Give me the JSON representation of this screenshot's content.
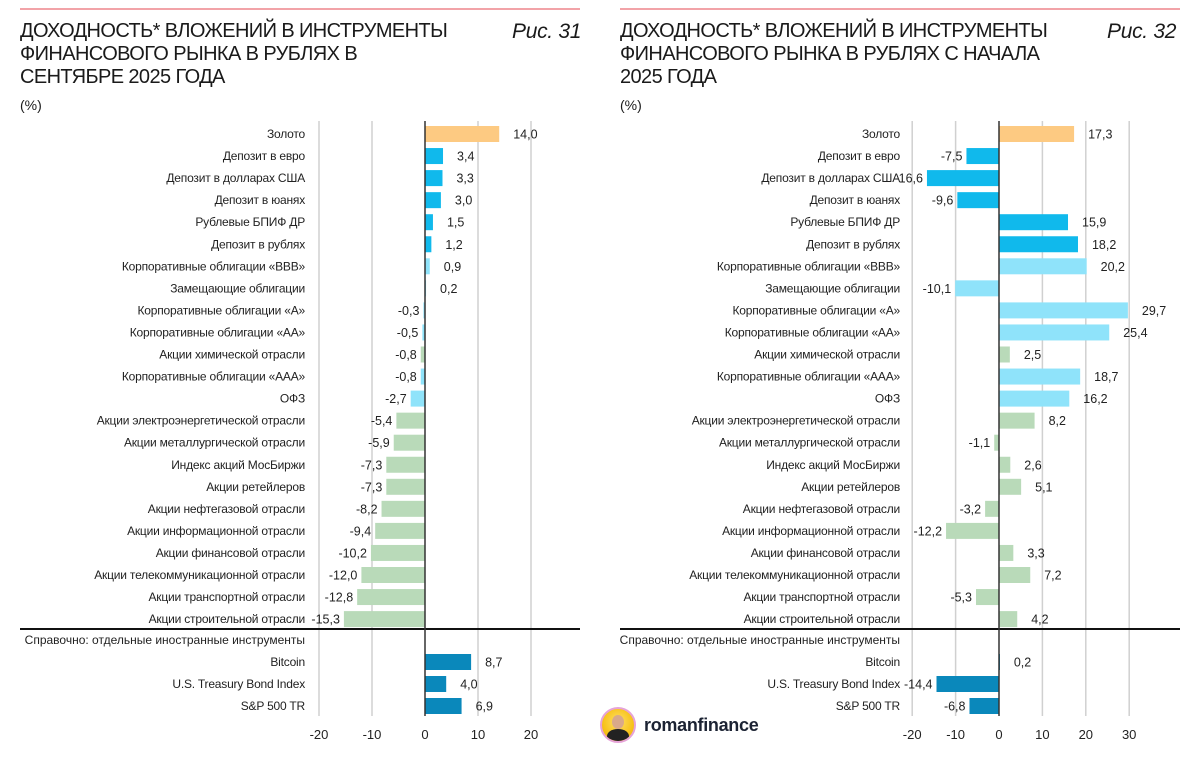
{
  "colors": {
    "gold": "#fdca82",
    "deposit": "#10b9ec",
    "bond": "#8fe3fa",
    "stock": "#b9dab9",
    "foreign": "#0a88bb",
    "grid": "#d0d0d0"
  },
  "charts": {
    "left": {
      "title": "ДОХОДНОСТЬ* ВЛОЖЕНИЙ В ИНСТРУМЕНТЫ ФИНАНСОВОГО РЫНКА В РУБЛЯХ В СЕНТЯБРЕ 2025 ГОДА",
      "fig": "Рис. 31",
      "unit": "(%)"
    },
    "right": {
      "title": "ДОХОДНОСТЬ* ВЛОЖЕНИЙ В ИНСТРУМЕНТЫ ФИНАНСОВОГО РЫНКА В РУБЛЯХ С НАЧАЛА 2025 ГОДА",
      "fig": "Рис. 32",
      "unit": "(%)"
    }
  },
  "logo": {
    "text": "romanfinance"
  },
  "chart_data": [
    {
      "type": "bar",
      "orientation": "horizontal",
      "title": "ДОХОДНОСТЬ* ВЛОЖЕНИЙ В ИНСТРУМЕНТЫ ФИНАНСОВОГО РЫНКА В РУБЛЯХ В СЕНТЯБРЕ 2025 ГОДА",
      "ylabel": "(%)",
      "xlim": [
        -20,
        20
      ],
      "xticks": [
        -20,
        -10,
        0,
        10,
        20
      ],
      "grid": true,
      "categories": [
        "Золото",
        "Депозит в евро",
        "Депозит в долларах США",
        "Депозит в юанях",
        "Рублевые БПИФ ДР",
        "Депозит в рублях",
        "Корпоративные облигации «ВВВ»",
        "Замещающие облигации",
        "Корпоративные облигации «А»",
        "Корпоративные облигации «АА»",
        "Акции химической отрасли",
        "Корпоративные облигации «ААА»",
        "ОФЗ",
        "Акции электроэнергетической отрасли",
        "Акции металлургической отрасли",
        "Индекс акций МосБиржи",
        "Акции ретейлеров",
        "Акции нефтегазовой отрасли",
        "Акции информационной отрасли",
        "Акции финансовой отрасли",
        "Акции телекоммуникационной отрасли",
        "Акции транспортной отрасли",
        "Акции строительной отрасли"
      ],
      "values": [
        14.0,
        3.4,
        3.3,
        3.0,
        1.5,
        1.2,
        0.9,
        0.2,
        -0.3,
        -0.5,
        -0.8,
        -0.8,
        -2.7,
        -5.4,
        -5.9,
        -7.3,
        -7.3,
        -8.2,
        -9.4,
        -10.2,
        -12.0,
        -12.8,
        -15.3
      ],
      "groups": [
        "gold",
        "deposit",
        "deposit",
        "deposit",
        "deposit",
        "deposit",
        "bond",
        "bond",
        "bond",
        "bond",
        "stock",
        "bond",
        "bond",
        "stock",
        "stock",
        "stock",
        "stock",
        "stock",
        "stock",
        "stock",
        "stock",
        "stock",
        "stock"
      ],
      "reference_header": "Справочно: отдельные иностранные инструменты",
      "reference_categories": [
        "Bitcoin",
        "U.S. Treasury Bond Index",
        "S&P 500 TR"
      ],
      "reference_values": [
        8.7,
        4.0,
        6.9
      ]
    },
    {
      "type": "bar",
      "orientation": "horizontal",
      "title": "ДОХОДНОСТЬ* ВЛОЖЕНИЙ В ИНСТРУМЕНТЫ ФИНАНСОВОГО РЫНКА В РУБЛЯХ С НАЧАЛА 2025 ГОДА",
      "ylabel": "(%)",
      "xlim": [
        -20,
        30
      ],
      "xticks": [
        -20,
        -10,
        0,
        10,
        20,
        30
      ],
      "grid": true,
      "categories": [
        "Золото",
        "Депозит в евро",
        "Депозит в долларах США",
        "Депозит в юанях",
        "Рублевые БПИФ ДР",
        "Депозит в рублях",
        "Корпоративные облигации «ВВВ»",
        "Замещающие облигации",
        "Корпоративные облигации «А»",
        "Корпоративные облигации «АА»",
        "Акции химической отрасли",
        "Корпоративные облигации «ААА»",
        "ОФЗ",
        "Акции электроэнергетической отрасли",
        "Акции металлургической отрасли",
        "Индекс акций МосБиржи",
        "Акции ретейлеров",
        "Акции нефтегазовой отрасли",
        "Акции информационной отрасли",
        "Акции финансовой отрасли",
        "Акции телекоммуникационной отрасли",
        "Акции транспортной отрасли",
        "Акции строительной отрасли"
      ],
      "values": [
        17.3,
        -7.5,
        -16.6,
        -9.6,
        15.9,
        18.2,
        20.2,
        -10.1,
        29.7,
        25.4,
        2.5,
        18.7,
        16.2,
        8.2,
        -1.1,
        2.6,
        5.1,
        -3.2,
        -12.2,
        3.3,
        7.2,
        -5.3,
        4.2
      ],
      "groups": [
        "gold",
        "deposit",
        "deposit",
        "deposit",
        "deposit",
        "deposit",
        "bond",
        "bond",
        "bond",
        "bond",
        "stock",
        "bond",
        "bond",
        "stock",
        "stock",
        "stock",
        "stock",
        "stock",
        "stock",
        "stock",
        "stock",
        "stock",
        "stock"
      ],
      "reference_header": "Справочно: отдельные иностранные инструменты",
      "reference_categories": [
        "Bitcoin",
        "U.S. Treasury Bond Index",
        "S&P 500 TR"
      ],
      "reference_values": [
        0.2,
        -14.4,
        -6.8
      ]
    }
  ]
}
